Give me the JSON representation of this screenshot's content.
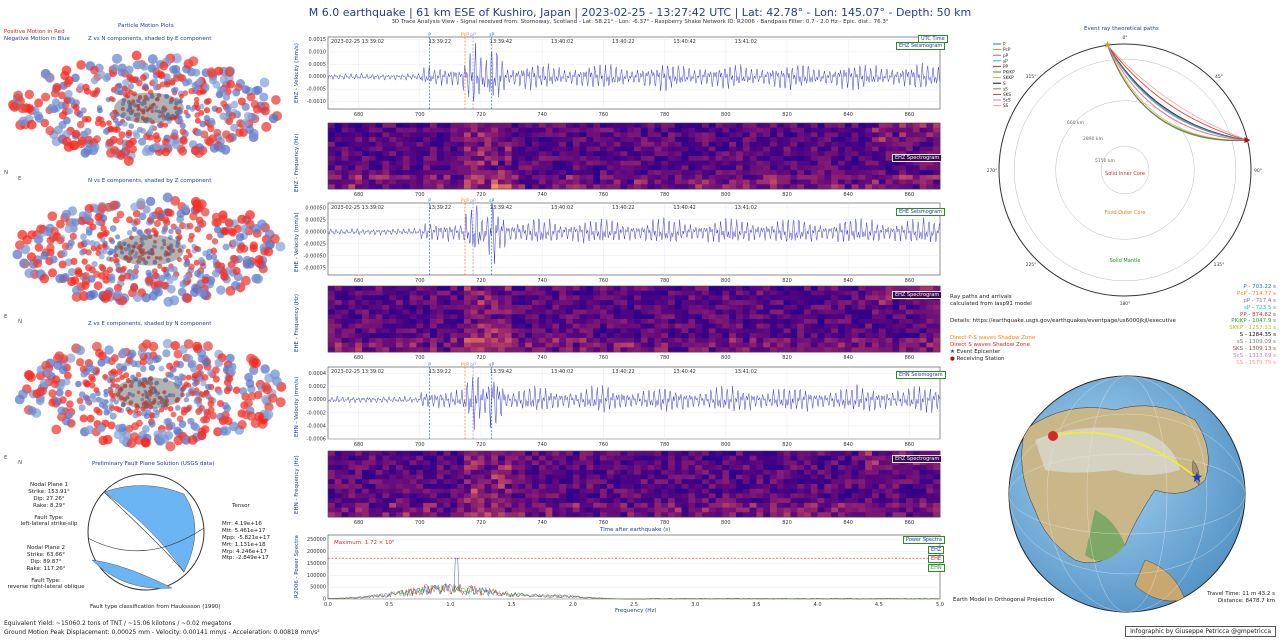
{
  "header": {
    "title": "M 6.0 earthquake | 61 km ESE of Kushiro, Japan | 2023-02-25 - 13:27:42 UTC | Lat: 42.78° - Lon: 145.07° - Depth: 50 km",
    "subtitle": "3D Trace Analysis View - Signal received from: Stornoway, Scotland - Lat: 58.21° - Lon: -6.37° - Raspberry Shake Network ID: R2006 - Bandpass Filter: 0.7 - 2.0 Hz - Epic. dist.: 76.3°"
  },
  "left": {
    "legend_pos": "Positive Motion in Red",
    "legend_neg": "Negative Motion in Blue",
    "section_title": "Particle Motion Plots",
    "plot1": "Z vs N components, shaded by E component",
    "plot2": "N vs E components, shaded by Z component",
    "plot3": "Z vs E components, shaded by N component",
    "axis1": [
      "N",
      "E"
    ],
    "axis2": [
      "E",
      "N"
    ],
    "axis3": [
      "E",
      "N"
    ],
    "fault_title": "Preliminary Fault Plane Solution (USGS data)",
    "np1": [
      "Nodal Plane 1",
      "Strike: 153.91°",
      "Dip: 27.26°",
      "Rake: 8.29°"
    ],
    "ft1": [
      "Fault Type:",
      "left-lateral strike-slip"
    ],
    "np2": [
      "Nodal Plane 2",
      "Strike: 63.66°",
      "Dip: 89.87°",
      "Rake: 117.26°"
    ],
    "ft2": [
      "Fault Type:",
      "reverse right-lateral oblique"
    ],
    "tensor_title": "Tensor",
    "tensor": [
      "Mrr: 4.19e+16",
      "Mtt: 5.461e+17",
      "Mpp: -5.821e+17",
      "Mrt: 1.131e+18",
      "Mrp: 4.246e+17",
      "Mtp: -2.849e+17"
    ],
    "fault_caption": "Fault type classification from Haukssson (1990)",
    "yield": "Equivalent Yield: ~15060.2 tons of TNT / ~15.06 kilotons / ~0.02 megatons",
    "ground": "Ground Motion Peak Displacement: 0.00025 mm - Velocity: 0.00141 mm/s - Acceleration: 0.00818  mm/s²"
  },
  "center": {
    "utc_tag": "UTC Time",
    "time_labels": [
      "2023-02-25 13:39:02",
      "13:39:22",
      "13:39:42",
      "13:40:02",
      "13:40:22",
      "13:40:42",
      "13:41:02"
    ],
    "x_ticks": [
      "680",
      "700",
      "720",
      "740",
      "760",
      "780",
      "800",
      "820",
      "840",
      "860"
    ],
    "phase_labels": [
      "P",
      "PcP",
      "pP",
      "sP"
    ],
    "phase_colors": [
      "#1f77b4",
      "#ff7f0e",
      "#8c8cff",
      "#1f77b4"
    ],
    "traces": [
      {
        "tag": "EHZ Seismogram",
        "ylabel": "EHZ - Velocity (mm/s)",
        "yticks": [
          "0.0015",
          "0.0010",
          "0.0005",
          "0.0000",
          "-0.0005",
          "-0.0010"
        ]
      },
      {
        "tag": "EHE Seismogram",
        "ylabel": "EHE - Velocity (mm/s)",
        "yticks": [
          "0.00050",
          "0.00025",
          "0.00000",
          "-0.00025",
          "-0.00050",
          "-0.00075"
        ]
      },
      {
        "tag": "EHN Seismogram",
        "ylabel": "EHN - Velocity (mm/s)",
        "yticks": [
          "0.0004",
          "0.0002",
          "0.0000",
          "-0.0002",
          "-0.0004",
          "-0.0006"
        ]
      }
    ],
    "specs": [
      {
        "tag": "EHZ Spectrogram",
        "ylabel": "EHZ - Frequency (Hz)"
      },
      {
        "tag": "EHZ Spectrogram",
        "ylabel": "EHE - Frequency (Hz)"
      },
      {
        "tag": "EHZ Spectrogram",
        "ylabel": "EHN - Frequency (Hz)"
      }
    ],
    "xaxis_title": "Time after earthquake (s)",
    "power_tag": "Power Spectra",
    "power_max": "Maximum: 1.72 × 10⁵",
    "power_ylabel": "R2006 - Power Spectra",
    "power_xlabel": "Frequency (Hz)",
    "power_yticks": [
      "250000",
      "200000",
      "150000",
      "100000",
      "50000",
      "0"
    ],
    "power_xticks": [
      "0.0",
      "0.5",
      "1.0",
      "1.5",
      "2.0",
      "2.5",
      "3.0",
      "3.5",
      "4.0",
      "4.5",
      "5.0"
    ],
    "power_legend": [
      "EHZ",
      "EHE",
      "EHN"
    ]
  },
  "right": {
    "ray_title": "Event ray theoretical paths",
    "ray_legend": [
      "P",
      "PcP",
      "pP",
      "sP",
      "PP",
      "PKiKP",
      "SKKP",
      "S",
      "sS",
      "SKS",
      "ScS",
      "SS"
    ],
    "ray_legend_colors": [
      "#1f77b4",
      "#ff7f0e",
      "#9467bd",
      "#17becf",
      "#d62728",
      "#2ca02c",
      "#bcbd22",
      "#111111",
      "#7f7f7f",
      "#8c564b",
      "#e377c2",
      "#ff9896"
    ],
    "core_inner": "Solid Inner Core",
    "core_outer": "Fluid Outer Core",
    "mantle": "Solid Mantle",
    "depth_labels": [
      "660 km",
      "2890 km",
      "5150 km"
    ],
    "angle_labels": [
      "0°",
      "45°",
      "90°",
      "135°",
      "180°",
      "225°",
      "270°",
      "315°"
    ],
    "ray_info": [
      "Ray paths and arrivals",
      "calculated from iasp91 model"
    ],
    "details": "Details: https://earthquake.usgs.gov/earthquakes/eventpage/us6000jkjl/executive",
    "shadow_p": "Direct P-S waves Shadow Zone",
    "shadow_s": "Direct S waves Shadow Zone",
    "epicenter": "Event Epicenter",
    "station": "Receiving Station",
    "arrivals": [
      {
        "t": "P - 703.22 s",
        "c": "#1f77b4"
      },
      {
        "t": "PcP - 714.77 s",
        "c": "#ff7f0e"
      },
      {
        "t": "pP - 717.4 s",
        "c": "#9467bd"
      },
      {
        "t": "sP - 723.5 s",
        "c": "#17becf"
      },
      {
        "t": "PP - 874.62 s",
        "c": "#d62728"
      },
      {
        "t": "PKiKP - 1047.9 s",
        "c": "#2ca02c"
      },
      {
        "t": "SKKP - 1257.33 s",
        "c": "#bcbd22"
      },
      {
        "t": "S - 1284.35 s",
        "c": "#111111"
      },
      {
        "t": "sS - 1309.09 s",
        "c": "#7f7f7f"
      },
      {
        "t": "SKS - 1309.13 s",
        "c": "#8c564b"
      },
      {
        "t": "ScS - 1313.69 s",
        "c": "#e377c2"
      },
      {
        "t": "SS - 1579.75 s",
        "c": "#ff9896"
      }
    ],
    "earth_caption": "Earth Model in Orthogonal Projection",
    "travel": [
      "Travel Time: 11 m 43.2 s",
      "Distance: 8478.7 km"
    ],
    "credit": "Infographic by Giuseppe Petricca  @gmpetricca"
  },
  "chart_data": [
    {
      "type": "line",
      "title": "EHZ Seismogram",
      "ylabel": "EHZ - Velocity (mm/s)",
      "xlim": [
        670,
        870
      ],
      "ylim": [
        -0.0013,
        0.0016
      ]
    },
    {
      "type": "line",
      "title": "EHE Seismogram",
      "ylabel": "EHE - Velocity (mm/s)",
      "xlim": [
        670,
        870
      ],
      "ylim": [
        -0.0009,
        0.0006
      ]
    },
    {
      "type": "line",
      "title": "EHN Seismogram",
      "ylabel": "EHN - Velocity (mm/s)",
      "xlim": [
        670,
        870
      ],
      "ylim": [
        -0.0006,
        0.0005
      ]
    },
    {
      "type": "line",
      "title": "Power Spectra",
      "xlabel": "Frequency (Hz)",
      "ylabel": "R2006 - Power Spectra",
      "xlim": [
        0,
        5
      ],
      "ylim": [
        0,
        270000
      ],
      "series": [
        {
          "name": "EHZ",
          "peak_x": 1.05,
          "peak_y": 172000
        },
        {
          "name": "EHE",
          "peak_x": 0.8,
          "peak_y": 60000
        },
        {
          "name": "EHN",
          "peak_x": 1.1,
          "peak_y": 45000
        }
      ]
    }
  ]
}
